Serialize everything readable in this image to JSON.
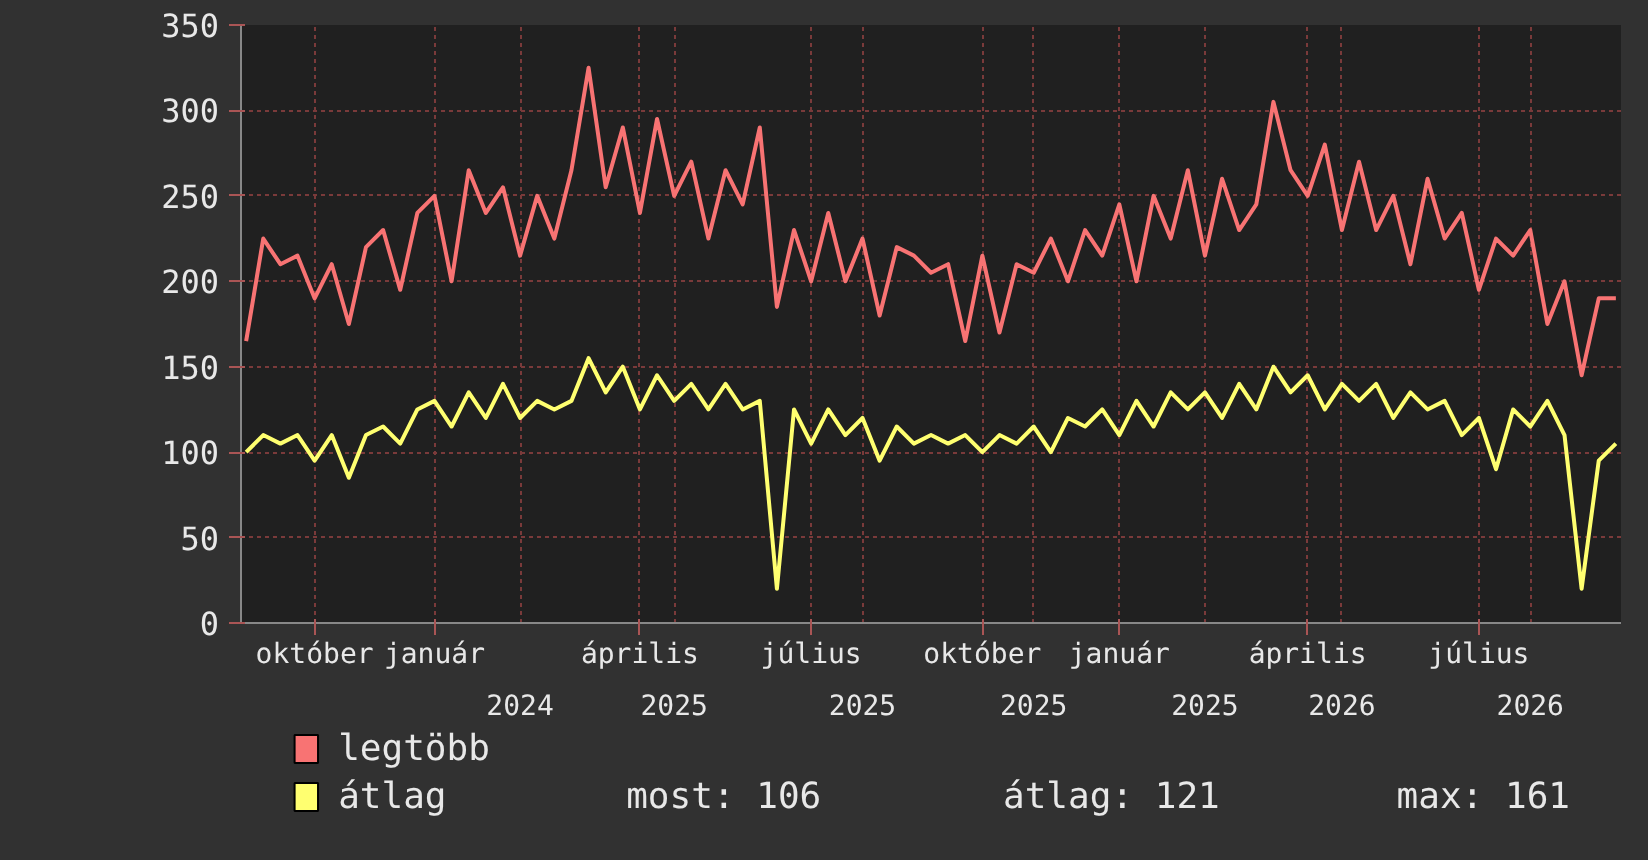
{
  "chart_data": {
    "type": "line",
    "categories": [
      null,
      null,
      null,
      null,
      "október",
      null,
      null,
      null,
      null,
      null,
      null,
      "január",
      null,
      null,
      null,
      null,
      "2024",
      null,
      null,
      null,
      null,
      null,
      null,
      "április",
      null,
      "2025",
      null,
      null,
      null,
      null,
      null,
      null,
      null,
      "július",
      null,
      null,
      "2025",
      null,
      null,
      null,
      null,
      null,
      null,
      "október",
      null,
      null,
      "2025",
      null,
      null,
      null,
      null,
      "január",
      null,
      null,
      null,
      null,
      "2025",
      null,
      null,
      null,
      null,
      null,
      "április",
      null,
      "2026",
      null,
      null,
      null,
      null,
      null,
      null,
      null,
      "július",
      null,
      null,
      "2026",
      null,
      null,
      null,
      null,
      null
    ],
    "series": [
      {
        "name": "legtöbb",
        "color": "#f87373",
        "values": [
          165,
          225,
          210,
          215,
          190,
          210,
          175,
          220,
          230,
          195,
          240,
          250,
          200,
          265,
          240,
          255,
          215,
          250,
          225,
          265,
          325,
          255,
          290,
          240,
          295,
          250,
          270,
          225,
          265,
          245,
          290,
          185,
          230,
          200,
          240,
          200,
          225,
          180,
          220,
          215,
          205,
          210,
          165,
          215,
          170,
          210,
          205,
          225,
          200,
          230,
          215,
          245,
          200,
          250,
          225,
          265,
          215,
          260,
          230,
          245,
          305,
          265,
          250,
          280,
          230,
          270,
          230,
          250,
          210,
          260,
          225,
          240,
          195,
          225,
          215,
          230,
          175,
          200,
          145,
          190,
          190
        ]
      },
      {
        "name": "átlag",
        "color": "#ffff70",
        "values": [
          100,
          110,
          105,
          110,
          95,
          110,
          85,
          110,
          115,
          105,
          125,
          130,
          115,
          135,
          120,
          140,
          120,
          130,
          125,
          130,
          155,
          135,
          150,
          125,
          145,
          130,
          140,
          125,
          140,
          125,
          130,
          20,
          125,
          105,
          125,
          110,
          120,
          95,
          115,
          105,
          110,
          105,
          110,
          100,
          110,
          105,
          115,
          100,
          120,
          115,
          125,
          110,
          130,
          115,
          135,
          125,
          135,
          120,
          140,
          125,
          150,
          135,
          145,
          125,
          140,
          130,
          140,
          120,
          135,
          125,
          130,
          110,
          120,
          90,
          125,
          115,
          130,
          110,
          20,
          95,
          105
        ]
      }
    ],
    "ylim": [
      0,
      350
    ],
    "yticks": [
      0,
      50,
      100,
      150,
      200,
      250,
      300,
      350
    ],
    "grid": true,
    "legend": "bottom",
    "annotations": [
      "most: 106",
      "átlag: 121",
      "max: 161"
    ]
  }
}
